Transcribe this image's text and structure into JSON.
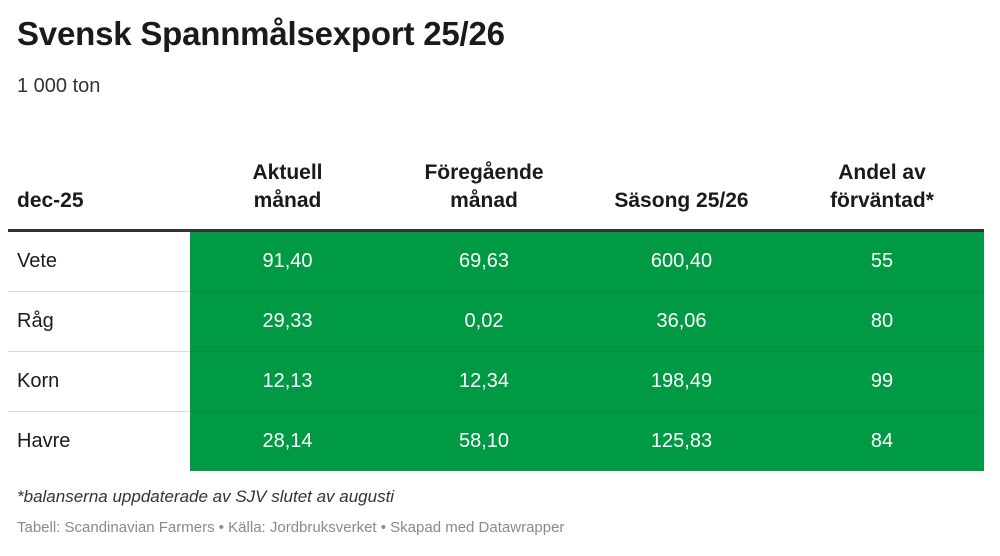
{
  "title": "Svensk Spannmålsexport 25/26",
  "subtitle": "1 000 ton",
  "note": "*balanserna uppdaterade av SJV slutet av augusti",
  "footer": "Tabell: Scandinavian Farmers • Källa: Jordbruksverket • Skapad med Datawrapper",
  "colors": {
    "cell_fill": "#009a44",
    "cell_text": "#ffffff",
    "header_rule": "#333333"
  },
  "chart_data": {
    "type": "table",
    "columns": [
      "dec-25",
      "Aktuell månad",
      "Föregående månad",
      "Säsong 25/26",
      "Andel av förväntad*"
    ],
    "header_lines": [
      [
        "dec-25"
      ],
      [
        "Aktuell",
        "månad"
      ],
      [
        "Föregående",
        "månad"
      ],
      [
        "Säsong 25/26"
      ],
      [
        "Andel av",
        "förväntad*"
      ]
    ],
    "rows": [
      [
        "Vete",
        "91,40",
        "69,63",
        "600,40",
        "55"
      ],
      [
        "Råg",
        "29,33",
        "0,02",
        "36,06",
        "80"
      ],
      [
        "Korn",
        "12,13",
        "12,34",
        "198,49",
        "99"
      ],
      [
        "Havre",
        "28,14",
        "58,10",
        "125,83",
        "84"
      ]
    ]
  }
}
